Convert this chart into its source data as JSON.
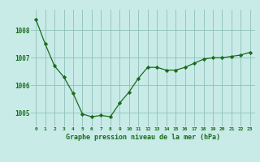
{
  "x": [
    0,
    1,
    2,
    3,
    4,
    5,
    6,
    7,
    8,
    9,
    10,
    11,
    12,
    13,
    14,
    15,
    16,
    17,
    18,
    19,
    20,
    21,
    22,
    23
  ],
  "y": [
    1008.4,
    1007.5,
    1006.7,
    1006.3,
    1005.7,
    1004.95,
    1004.85,
    1004.9,
    1004.85,
    1005.35,
    1005.75,
    1006.25,
    1006.65,
    1006.65,
    1006.55,
    1006.55,
    1006.65,
    1006.8,
    1006.95,
    1007.0,
    1007.0,
    1007.05,
    1007.1,
    1007.2
  ],
  "line_color": "#1a6b1a",
  "marker_color": "#1a6b1a",
  "bg_color": "#c8ebe8",
  "grid_color": "#8fbfbb",
  "xlabel": "Graphe pression niveau de la mer (hPa)",
  "xlabel_color": "#1a6b1a",
  "tick_color": "#1a6b1a",
  "ylim": [
    1004.5,
    1008.75
  ],
  "yticks": [
    1005,
    1006,
    1007,
    1008
  ],
  "xticks": [
    0,
    1,
    2,
    3,
    4,
    5,
    6,
    7,
    8,
    9,
    10,
    11,
    12,
    13,
    14,
    15,
    16,
    17,
    18,
    19,
    20,
    21,
    22,
    23
  ]
}
